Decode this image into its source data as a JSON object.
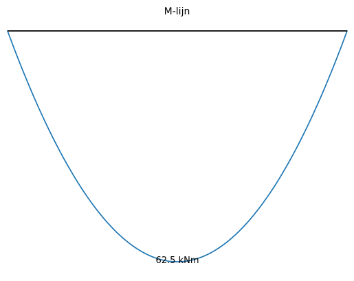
{
  "chart_data": {
    "type": "line",
    "title": "M-lijn",
    "xlabel": "",
    "ylabel": "",
    "grid": false,
    "axes_visible": false,
    "invert_y": true,
    "beam": {
      "x": [
        0,
        1
      ],
      "y": [
        0,
        0
      ],
      "color": "#000000"
    },
    "series": [
      {
        "shape": "parabola",
        "x_start": 0,
        "x_end": 1,
        "y_max": 62.5,
        "color": "#1f77b4"
      }
    ],
    "max_label": {
      "x": 0.5,
      "y": 62.5,
      "text": "62.5 kNm"
    }
  }
}
